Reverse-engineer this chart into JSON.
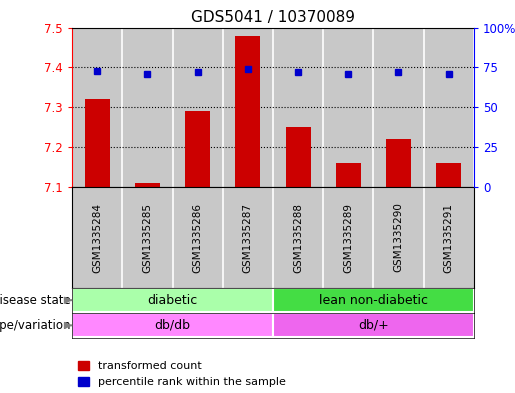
{
  "title": "GDS5041 / 10370089",
  "samples": [
    "GSM1335284",
    "GSM1335285",
    "GSM1335286",
    "GSM1335287",
    "GSM1335288",
    "GSM1335289",
    "GSM1335290",
    "GSM1335291"
  ],
  "red_values": [
    7.32,
    7.11,
    7.29,
    7.48,
    7.25,
    7.16,
    7.22,
    7.16
  ],
  "blue_values": [
    73,
    71,
    72,
    74,
    72,
    71,
    72,
    71
  ],
  "ylim_left": [
    7.1,
    7.5
  ],
  "ylim_right": [
    0,
    100
  ],
  "yticks_left": [
    7.1,
    7.2,
    7.3,
    7.4,
    7.5
  ],
  "yticks_right": [
    0,
    25,
    50,
    75,
    100
  ],
  "yticklabels_right": [
    "0",
    "25",
    "50",
    "75",
    "100%"
  ],
  "disease_state_groups": [
    {
      "label": "diabetic",
      "span": [
        0,
        4
      ],
      "color": "#AAFFAA"
    },
    {
      "label": "lean non-diabetic",
      "span": [
        4,
        8
      ],
      "color": "#44DD44"
    }
  ],
  "genotype_groups": [
    {
      "label": "db/db",
      "span": [
        0,
        4
      ],
      "color": "#FF88FF"
    },
    {
      "label": "db/+",
      "span": [
        4,
        8
      ],
      "color": "#EE66EE"
    }
  ],
  "bar_color": "#CC0000",
  "dot_color": "#0000CC",
  "bg_color": "#C8C8C8",
  "legend_items": [
    {
      "color": "#CC0000",
      "label": "transformed count"
    },
    {
      "color": "#0000CC",
      "label": "percentile rank within the sample"
    }
  ],
  "label_disease_state": "disease state",
  "label_genotype": "genotype/variation",
  "bar_width": 0.5
}
